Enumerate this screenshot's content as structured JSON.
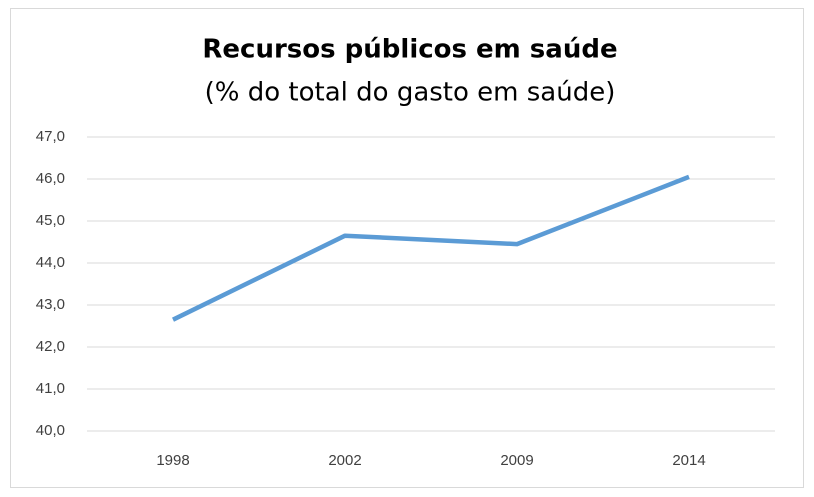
{
  "chart_data": {
    "type": "line",
    "title": "Recursos públicos em saúde",
    "subtitle": "(% do total do gasto em saúde)",
    "categories": [
      "1998",
      "2002",
      "2009",
      "2014"
    ],
    "values": [
      42.65,
      44.65,
      44.45,
      46.05
    ],
    "color": "#5b9bd5",
    "ylim": [
      40,
      47
    ],
    "yticks": [
      {
        "value": 40,
        "label": "40,0"
      },
      {
        "value": 41,
        "label": "41,0"
      },
      {
        "value": 42,
        "label": "42,0"
      },
      {
        "value": 43,
        "label": "43,0"
      },
      {
        "value": 44,
        "label": "44,0"
      },
      {
        "value": 45,
        "label": "45,0"
      },
      {
        "value": 46,
        "label": "46,0"
      },
      {
        "value": 47,
        "label": "47,0"
      }
    ],
    "grid": true
  }
}
